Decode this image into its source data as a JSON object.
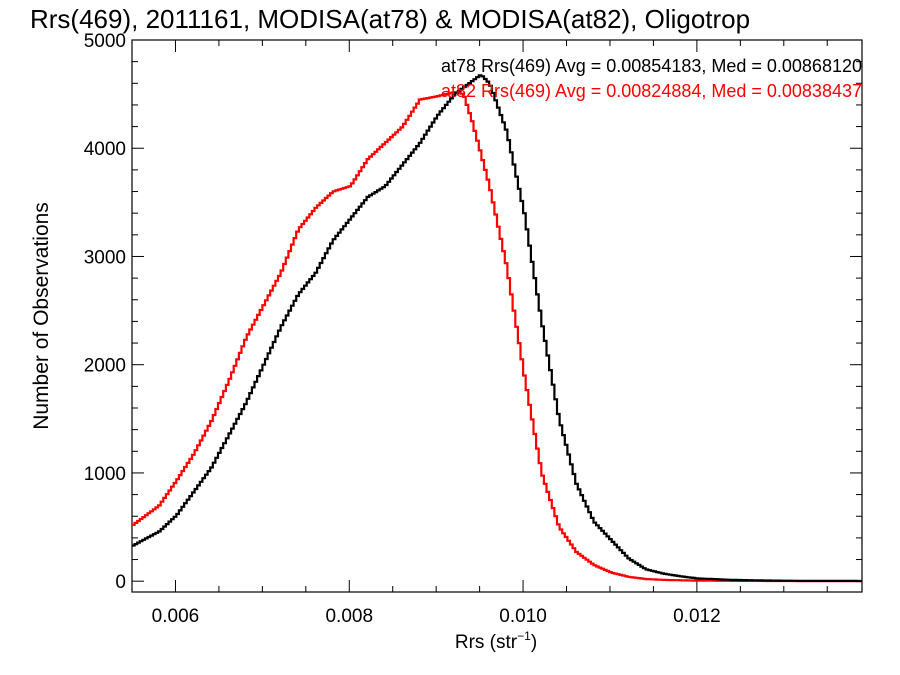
{
  "chart_data": {
    "type": "line",
    "title": "Rrs(469), 2011161, MODISA(at78) & MODISA(at82), Oligotrop",
    "xlabel": "Rrs (str",
    "xlabel_sup": "−1",
    "xlabel_suffix": ")",
    "ylabel": "Number of Observations",
    "xlim": [
      0.0055,
      0.0139
    ],
    "ylim": [
      -100,
      5000
    ],
    "xticks": [
      0.006,
      0.008,
      0.01,
      0.012
    ],
    "xtick_labels": [
      "0.006",
      "0.008",
      "0.010",
      "0.012"
    ],
    "yticks": [
      0,
      1000,
      2000,
      3000,
      4000,
      5000
    ],
    "ytick_labels": [
      "0",
      "1000",
      "2000",
      "3000",
      "4000",
      "5000"
    ],
    "grid": false,
    "legend_position": "top-right",
    "series": [
      {
        "name": "at78",
        "color": "#000000",
        "annotation": "at78 Rrs(469) Avg = 0.00854183, Med = 0.00868120",
        "x": [
          0.0055,
          0.0058,
          0.006,
          0.0062,
          0.0064,
          0.0066,
          0.0068,
          0.007,
          0.0072,
          0.0074,
          0.0076,
          0.0078,
          0.008,
          0.0082,
          0.0084,
          0.0086,
          0.0088,
          0.009,
          0.0092,
          0.0094,
          0.0095,
          0.0096,
          0.0098,
          0.01,
          0.0102,
          0.0104,
          0.0106,
          0.0108,
          0.011,
          0.0112,
          0.0114,
          0.0116,
          0.0118,
          0.012,
          0.0124,
          0.0128,
          0.0132,
          0.0139
        ],
        "y": [
          330,
          460,
          610,
          830,
          1050,
          1350,
          1650,
          2000,
          2350,
          2650,
          2850,
          3150,
          3350,
          3550,
          3650,
          3850,
          4050,
          4300,
          4500,
          4620,
          4680,
          4600,
          4150,
          3400,
          2400,
          1500,
          900,
          550,
          380,
          210,
          110,
          70,
          45,
          25,
          12,
          6,
          3,
          2
        ]
      },
      {
        "name": "at82",
        "color": "#ff0000",
        "annotation": "at82 Rrs(469) Avg = 0.00824884, Med = 0.00838437",
        "x": [
          0.0055,
          0.0058,
          0.006,
          0.0062,
          0.0064,
          0.0066,
          0.0068,
          0.007,
          0.0072,
          0.0074,
          0.0076,
          0.0078,
          0.008,
          0.0082,
          0.0084,
          0.0086,
          0.0088,
          0.009,
          0.0092,
          0.0093,
          0.0094,
          0.0096,
          0.0098,
          0.01,
          0.0102,
          0.0104,
          0.0106,
          0.0108,
          0.011,
          0.0112,
          0.0114,
          0.0116,
          0.0118,
          0.012,
          0.0124,
          0.0128,
          0.0132,
          0.0139
        ],
        "y": [
          520,
          700,
          930,
          1180,
          1480,
          1850,
          2250,
          2550,
          2850,
          3250,
          3450,
          3600,
          3650,
          3900,
          4050,
          4200,
          4450,
          4480,
          4520,
          4500,
          4250,
          3650,
          2900,
          1900,
          1000,
          500,
          270,
          150,
          80,
          40,
          20,
          12,
          8,
          5,
          3,
          2,
          1,
          1
        ]
      }
    ]
  }
}
